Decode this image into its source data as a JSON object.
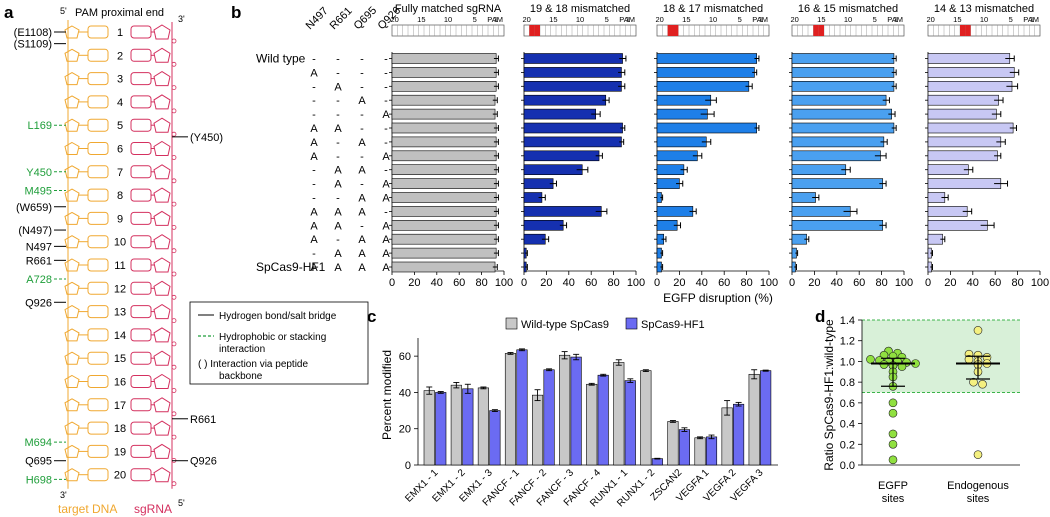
{
  "panel_labels": {
    "a": "a",
    "b": "b",
    "c": "c",
    "d": "d"
  },
  "panel_a": {
    "title": "PAM proximal end",
    "five_prime_top": "5'",
    "three_prime_top": "3'",
    "three_prime_bottom": "3'",
    "five_prime_bottom": "5'",
    "dna_label": "target DNA",
    "rna_label": "sgRNA",
    "positions": [
      "1",
      "2",
      "3",
      "4",
      "5",
      "6",
      "7",
      "8",
      "9",
      "10",
      "11",
      "12",
      "13",
      "14",
      "15",
      "16",
      "17",
      "18",
      "19",
      "20"
    ],
    "left_labels": [
      {
        "text": "(E1108)",
        "color": "#000000",
        "pos": 1
      },
      {
        "text": "(S1109)",
        "color": "#000000",
        "pos": 1.5
      },
      {
        "text": "L169",
        "color": "#1f9e3a",
        "pos": 5
      },
      {
        "text": "Y450",
        "color": "#1f9e3a",
        "pos": 7
      },
      {
        "text": "M495",
        "color": "#1f9e3a",
        "pos": 7.8
      },
      {
        "text": "(W659)",
        "color": "#000000",
        "pos": 8.5
      },
      {
        "text": "(N497)",
        "color": "#000000",
        "pos": 9.5
      },
      {
        "text": "N497",
        "color": "#000000",
        "pos": 10.2
      },
      {
        "text": "R661",
        "color": "#000000",
        "pos": 10.8
      },
      {
        "text": "A728",
        "color": "#1f9e3a",
        "pos": 11.6
      },
      {
        "text": "Q926",
        "color": "#000000",
        "pos": 12.6
      },
      {
        "text": "M694",
        "color": "#1f9e3a",
        "pos": 18.6
      },
      {
        "text": "Q695",
        "color": "#000000",
        "pos": 19.4
      },
      {
        "text": "H698",
        "color": "#1f9e3a",
        "pos": 20.2
      }
    ],
    "right_labels": [
      {
        "text": "(Y450)",
        "pos": 5.5
      },
      {
        "text": "R661",
        "pos": 17.6
      },
      {
        "text": "Q926",
        "pos": 19.4
      }
    ],
    "legend": [
      "Hydrogen bond/salt bridge",
      "Hydrophobic or stacking",
      "interaction",
      "( )  Interaction via peptide",
      "backbone"
    ]
  },
  "panel_b": {
    "mutation_headers": [
      "N497",
      "R661",
      "Q695",
      "Q926"
    ],
    "row_labels": [
      "Wild type",
      "",
      "",
      "",
      "",
      "",
      "",
      "",
      "",
      "",
      "",
      "",
      "",
      "",
      "",
      "SpCas9-HF1"
    ],
    "mutations": [
      [
        "-",
        "-",
        "-",
        "-"
      ],
      [
        "A",
        "-",
        "-",
        "-"
      ],
      [
        "-",
        "A",
        "-",
        "-"
      ],
      [
        "-",
        "-",
        "A",
        "-"
      ],
      [
        "-",
        "-",
        "-",
        "A"
      ],
      [
        "A",
        "A",
        "-",
        "-"
      ],
      [
        "A",
        "-",
        "A",
        "-"
      ],
      [
        "A",
        "-",
        "-",
        "A"
      ],
      [
        "-",
        "A",
        "A",
        "-"
      ],
      [
        "-",
        "A",
        "-",
        "A"
      ],
      [
        "-",
        "-",
        "A",
        "A"
      ],
      [
        "A",
        "A",
        "A",
        "-"
      ],
      [
        "A",
        "A",
        "-",
        "A"
      ],
      [
        "A",
        "-",
        "A",
        "A"
      ],
      [
        "-",
        "A",
        "A",
        "A"
      ],
      [
        "A",
        "A",
        "A",
        "A"
      ]
    ],
    "xlabel": "EGFP disruption (%)",
    "ruler_ticks": [
      "20",
      "15",
      "10",
      "5",
      "1"
    ],
    "pam_label": "PAM",
    "axis_ticks": [
      "0",
      "20",
      "40",
      "60",
      "80",
      "100"
    ]
  },
  "panel_c": {
    "ylabel": "Percent modified",
    "y_ticks": [
      "0",
      "20",
      "40",
      "60"
    ],
    "legend": [
      "Wild-type SpCas9",
      "SpCas9-HF1"
    ]
  },
  "panel_d": {
    "ylabel": "Ratio SpCas9-HF1:wild-type",
    "y_ticks": [
      "0.0",
      "0.2",
      "0.4",
      "0.6",
      "0.8",
      "1.0",
      "1.2",
      "1.4"
    ],
    "categories": [
      "EGFP",
      "sites",
      "Endogenous",
      "sites"
    ]
  },
  "colors": {
    "wt_bar": "#c8c8c8",
    "hf_bar": "#6b6bf2",
    "dna": "#f0a830",
    "rna": "#d4305f",
    "green": "#1f9e3a",
    "mismatch": "#e02020",
    "subpanel_colors": [
      "#c0c0c0",
      "#1530b0",
      "#1e7fe8",
      "#4aa0f0",
      "#c8c8f4"
    ],
    "dot_fill": "#90e040",
    "dot2_fill": "#f4f080",
    "band": "#d8f0d8"
  },
  "chart_data": [
    {
      "type": "bar",
      "title": "Fully matched sgRNA",
      "xlabel": "EGFP disruption (%)",
      "xlim": [
        0,
        100
      ],
      "mismatch_positions": [],
      "values": [
        93,
        93,
        93,
        92,
        92,
        93,
        93,
        93,
        93,
        93,
        93,
        93,
        93,
        93,
        93,
        92
      ],
      "errors": [
        2,
        2,
        2,
        2,
        2,
        2,
        2,
        2,
        2,
        2,
        2,
        2,
        2,
        2,
        2,
        2
      ]
    },
    {
      "type": "bar",
      "title": "19 & 18 mismatched",
      "xlabel": "EGFP disruption (%)",
      "xlim": [
        0,
        100
      ],
      "mismatch_positions": [
        19,
        18
      ],
      "values": [
        88,
        87,
        87,
        73,
        64,
        88,
        87,
        67,
        52,
        26,
        16,
        69,
        35,
        19,
        2,
        2
      ],
      "errors": [
        3,
        3,
        3,
        3,
        4,
        2,
        2,
        3,
        5,
        3,
        3,
        5,
        3,
        3,
        1,
        1
      ]
    },
    {
      "type": "bar",
      "title": "18 & 17 mismatched",
      "xlabel": "EGFP disruption (%)",
      "xlim": [
        0,
        100
      ],
      "mismatch_positions": [
        18,
        17
      ],
      "values": [
        89,
        87,
        82,
        48,
        45,
        89,
        44,
        36,
        24,
        20,
        4,
        32,
        18,
        6,
        4,
        4
      ],
      "errors": [
        2,
        2,
        3,
        5,
        6,
        2,
        4,
        4,
        3,
        3,
        1,
        3,
        3,
        2,
        1,
        1
      ]
    },
    {
      "type": "bar",
      "title": "16 & 15 mismatched",
      "xlabel": "EGFP disruption (%)",
      "xlim": [
        0,
        100
      ],
      "mismatch_positions": [
        16,
        15
      ],
      "values": [
        91,
        91,
        91,
        84,
        89,
        91,
        82,
        79,
        48,
        81,
        21,
        52,
        81,
        13,
        4,
        3
      ],
      "errors": [
        2,
        2,
        2,
        3,
        3,
        2,
        3,
        5,
        4,
        3,
        3,
        6,
        3,
        2,
        1,
        1
      ]
    },
    {
      "type": "bar",
      "title": "14 & 13 mismatched",
      "xlabel": "EGFP disruption (%)",
      "xlim": [
        0,
        100
      ],
      "mismatch_positions": [
        14,
        13
      ],
      "values": [
        73,
        77,
        75,
        63,
        61,
        76,
        65,
        62,
        36,
        65,
        15,
        35,
        53,
        13,
        3,
        3
      ],
      "errors": [
        4,
        4,
        5,
        4,
        4,
        3,
        4,
        3,
        4,
        6,
        3,
        4,
        6,
        2,
        1,
        1
      ]
    },
    {
      "type": "bar",
      "title": "",
      "ylabel": "Percent modified",
      "ylim": [
        0,
        70
      ],
      "categories": [
        "EMX1 - 1",
        "EMX1 - 2",
        "EMX1 - 3",
        "FANCF - 1",
        "FANCF - 2",
        "FANCF - 3",
        "FANCF - 4",
        "RUNX1 - 1",
        "RUNX1 - 2",
        "ZSCAN2",
        "VEGFA 1",
        "VEGFA 2",
        "VEGFA 3"
      ],
      "series": [
        {
          "name": "Wild-type SpCas9",
          "values": [
            41,
            44,
            42.5,
            61.5,
            38.5,
            60.5,
            44.5,
            56.5,
            52,
            24,
            15,
            31.5,
            50
          ],
          "errors": [
            2,
            1.5,
            0.5,
            0.5,
            3,
            2,
            0.5,
            1.5,
            0.5,
            0.5,
            0.5,
            4,
            2.5
          ]
        },
        {
          "name": "SpCas9-HF1",
          "values": [
            40,
            42,
            30,
            63.5,
            52.5,
            59.5,
            49.5,
            46.5,
            3.5,
            19.5,
            15.5,
            33.5,
            52
          ],
          "errors": [
            0.5,
            2.5,
            0.5,
            0.5,
            0.5,
            1.5,
            0.5,
            1,
            0.2,
            1,
            1,
            1,
            0.3
          ]
        }
      ]
    },
    {
      "type": "scatter",
      "ylabel": "Ratio SpCas9-HF1:wild-type",
      "ylim": [
        0,
        1.4
      ],
      "band": [
        0.7,
        1.4
      ],
      "categories": [
        "EGFP sites",
        "Endogenous sites"
      ],
      "series": [
        {
          "name": "EGFP sites",
          "median": 0.98,
          "q1": 0.76,
          "q3": 1.03,
          "values": [
            1.1,
            1.08,
            1.06,
            1.05,
            1.04,
            1.02,
            1.01,
            1.0,
            1.0,
            0.99,
            0.98,
            0.97,
            0.96,
            0.95,
            0.9,
            0.85,
            0.76,
            0.6,
            0.5,
            0.3,
            0.2,
            0.05
          ]
        },
        {
          "name": "Endogenous sites",
          "median": 0.98,
          "q1": 0.83,
          "q3": 1.05,
          "values": [
            1.3,
            1.07,
            1.06,
            1.04,
            1.02,
            1.0,
            0.98,
            0.97,
            0.9,
            0.8,
            0.78,
            0.1
          ]
        }
      ]
    }
  ]
}
